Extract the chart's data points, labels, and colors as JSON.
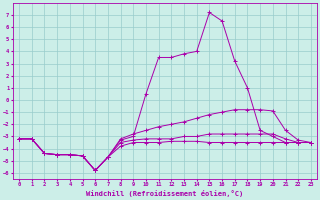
{
  "xlabel": "Windchill (Refroidissement éolien,°C)",
  "bg_color": "#cceee8",
  "line_color": "#aa00aa",
  "grid_color": "#99cccc",
  "x_values": [
    0,
    1,
    2,
    3,
    4,
    5,
    6,
    7,
    8,
    9,
    10,
    11,
    12,
    13,
    14,
    15,
    16,
    17,
    18,
    19,
    20,
    21,
    22,
    23
  ],
  "line_spike": [
    -3.2,
    -3.2,
    -4.4,
    -4.5,
    -4.5,
    -4.6,
    -5.8,
    -4.7,
    -3.3,
    -3.0,
    0.5,
    3.5,
    3.5,
    3.8,
    4.0,
    7.2,
    6.5,
    3.2,
    1.0,
    -2.5,
    -3.0,
    -3.5,
    -3.5,
    -3.5
  ],
  "line_top": [
    -3.2,
    -3.2,
    -4.4,
    -4.5,
    -4.5,
    -4.6,
    -5.8,
    -4.7,
    -3.2,
    -2.8,
    -2.5,
    -2.2,
    -2.0,
    -1.8,
    -1.5,
    -1.2,
    -1.0,
    -0.8,
    -0.8,
    -0.8,
    -0.9,
    -2.5,
    -3.3,
    -3.5
  ],
  "line_mid": [
    -3.2,
    -3.2,
    -4.4,
    -4.5,
    -4.5,
    -4.6,
    -5.8,
    -4.7,
    -3.5,
    -3.3,
    -3.2,
    -3.2,
    -3.2,
    -3.0,
    -3.0,
    -2.8,
    -2.8,
    -2.8,
    -2.8,
    -2.8,
    -2.8,
    -3.2,
    -3.5,
    -3.5
  ],
  "line_bot": [
    -3.2,
    -3.2,
    -4.4,
    -4.5,
    -4.5,
    -4.6,
    -5.8,
    -4.7,
    -3.8,
    -3.5,
    -3.5,
    -3.5,
    -3.4,
    -3.4,
    -3.4,
    -3.5,
    -3.5,
    -3.5,
    -3.5,
    -3.5,
    -3.5,
    -3.5,
    -3.5,
    -3.5
  ],
  "ylim": [
    -6.5,
    8.0
  ],
  "xlim": [
    -0.5,
    23.5
  ],
  "yticks": [
    7,
    6,
    5,
    4,
    3,
    2,
    1,
    0,
    -1,
    -2,
    -3,
    -4,
    -5,
    -6
  ],
  "xticks": [
    0,
    1,
    2,
    3,
    4,
    5,
    6,
    7,
    8,
    9,
    10,
    11,
    12,
    13,
    14,
    15,
    16,
    17,
    18,
    19,
    20,
    21,
    22,
    23
  ]
}
